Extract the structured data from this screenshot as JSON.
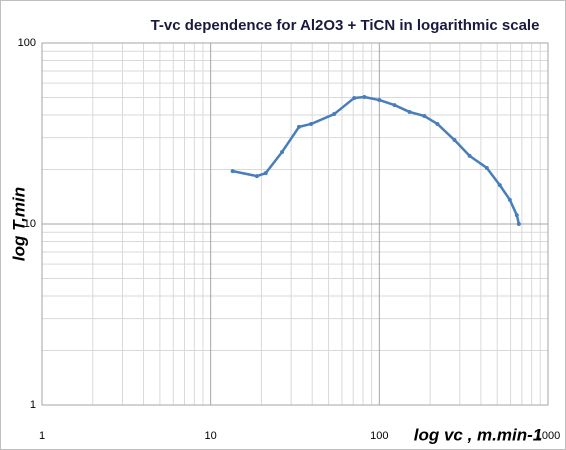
{
  "chart_data": {
    "type": "line",
    "title": "T-vc dependence for Al2O3 + TiCN in logarithmic scale",
    "x_label": "log vc , m.min-1",
    "y_label": "log T,min",
    "x_log": true,
    "y_log": true,
    "grid": true,
    "minor_grid": true,
    "xlim": [
      1,
      1000
    ],
    "ylim": [
      1,
      100
    ],
    "xticks": [
      1,
      10,
      100,
      1000
    ],
    "yticks": [
      1,
      10,
      100
    ],
    "x": [
      13.5,
      18.8,
      21.2,
      26.5,
      33.4,
      39.4,
      54,
      71,
      81.5,
      100,
      123,
      151,
      185,
      221,
      279,
      343,
      434,
      518,
      594,
      653,
      672
    ],
    "series": [
      {
        "color": "#4a7ebb",
        "values": [
          19.6,
          18.4,
          19.1,
          25,
          34.4,
          35.7,
          40.5,
          49.7,
          50.3,
          48.4,
          45.4,
          41.6,
          39.5,
          35.7,
          29.1,
          23.8,
          20.4,
          16.4,
          13.6,
          11.2,
          10
        ]
      }
    ]
  }
}
